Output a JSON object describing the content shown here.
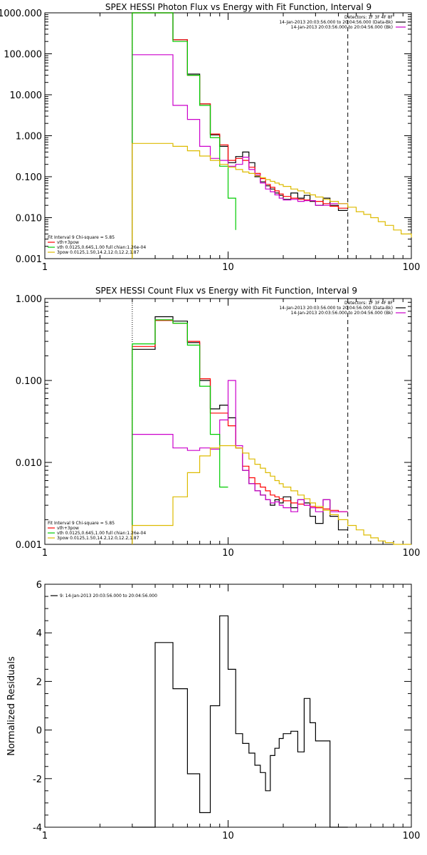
{
  "chart_data": [
    {
      "type": "line",
      "title": "SPEX HESSI Photon Flux vs Energy with Fit Function, Interval 9",
      "xlabel": "",
      "ylabel": "",
      "xscale": "log",
      "yscale": "log",
      "xlim": [
        1,
        100
      ],
      "ylim": [
        0.001,
        1000
      ],
      "x_ticks": [
        "1",
        "10",
        "100"
      ],
      "y_ticks": [
        "1000.000",
        "100.000",
        "10.000",
        "1.000",
        "0.100",
        "0.010",
        "0.001"
      ],
      "y_tick_values": [
        1000,
        100,
        10,
        1,
        0.1,
        0.01,
        0.001
      ],
      "vlines": [
        {
          "x": 3,
          "style": "dotted"
        },
        {
          "x": 45,
          "style": "dashed"
        }
      ],
      "legend_top": {
        "placement": "top-right",
        "lines": [
          "Detectors: 1F 3F 4F 8F",
          "14-Jan-2013 20:03:56.000 to 20:04:56.000 (Data-Bk)",
          "14-Jan-2013 20:03:56.000 to 20:04:56.000 (Bk)"
        ],
        "colors": [
          "",
          "#000000",
          "#cc00cc"
        ]
      },
      "legend_bottom": {
        "placement": "bottom-left",
        "lines": [
          "Fit Interval 9   Chi-square = 5.85",
          "vth+3pow",
          "vth 0.0125,0.645,1.00  full chian:1.26e-04",
          "3pow 0.0125,1.50,14.2,12.0,12.2,1.87"
        ],
        "colors": [
          "",
          "#ff0000",
          "#00cc00",
          "#ddbb00"
        ]
      },
      "series": [
        {
          "color": "#000000",
          "edges": [
            3,
            4,
            5,
            6,
            7,
            8,
            9,
            10,
            11,
            12,
            13,
            14,
            15,
            16,
            17,
            18,
            19,
            20,
            22,
            24,
            26,
            28,
            30,
            33,
            36,
            40,
            45
          ],
          "values": [
            1000,
            1000,
            220,
            32,
            6,
            1.05,
            0.55,
            0.22,
            0.31,
            0.4,
            0.22,
            0.1,
            0.075,
            0.06,
            0.05,
            0.04,
            0.035,
            0.028,
            0.04,
            0.03,
            0.035,
            0.025,
            0.02,
            0.03,
            0.02,
            0.015
          ]
        },
        {
          "color": "#ff0000",
          "edges": [
            3,
            4,
            5,
            6,
            7,
            8,
            9,
            10,
            11,
            12,
            13,
            14,
            15,
            16,
            17,
            18,
            19,
            20,
            22,
            24,
            26,
            28,
            30,
            33,
            36,
            40,
            45
          ],
          "values": [
            1000,
            1000,
            220,
            30,
            6,
            1.1,
            0.6,
            0.25,
            0.28,
            0.25,
            0.17,
            0.12,
            0.09,
            0.065,
            0.055,
            0.045,
            0.038,
            0.033,
            0.03,
            0.028,
            0.027,
            0.026,
            0.025,
            0.022,
            0.019,
            0.017
          ]
        },
        {
          "color": "#cc00cc",
          "edges": [
            3,
            4,
            5,
            6,
            7,
            8,
            9,
            10,
            11,
            12,
            13,
            14,
            15,
            16,
            17,
            18,
            19,
            20,
            22,
            24,
            26,
            28,
            30,
            33,
            36,
            40,
            45
          ],
          "values": [
            95,
            95,
            5.5,
            2.5,
            0.55,
            0.28,
            0.25,
            0.18,
            0.2,
            0.3,
            0.15,
            0.11,
            0.07,
            0.05,
            0.043,
            0.036,
            0.03,
            0.027,
            0.028,
            0.025,
            0.026,
            0.026,
            0.02,
            0.02,
            0.022,
            0.022
          ]
        },
        {
          "color": "#00cc00",
          "edges": [
            3,
            4,
            5,
            6,
            7,
            8,
            9,
            10,
            11
          ],
          "values": [
            1000,
            1000,
            200,
            30,
            5.5,
            0.9,
            0.18,
            0.03,
            0.005
          ]
        },
        {
          "color": "#ddbb00",
          "edges": [
            3,
            4,
            5,
            6,
            7,
            8,
            9,
            10,
            11,
            12,
            13,
            14,
            15,
            16,
            17,
            18,
            19,
            20,
            22,
            24,
            26,
            28,
            30,
            33,
            36,
            40,
            45,
            50,
            55,
            60,
            66,
            72,
            80,
            88,
            100
          ],
          "values": [
            0.65,
            0.65,
            0.55,
            0.43,
            0.32,
            0.25,
            0.2,
            0.17,
            0.15,
            0.13,
            0.12,
            0.105,
            0.095,
            0.085,
            0.077,
            0.07,
            0.064,
            0.058,
            0.05,
            0.045,
            0.04,
            0.036,
            0.032,
            0.028,
            0.025,
            0.022,
            0.018,
            0.014,
            0.012,
            0.01,
            0.008,
            0.0065,
            0.005,
            0.004,
            0.0033
          ]
        }
      ]
    },
    {
      "type": "line",
      "title": "SPEX HESSI Count Flux vs Energy with Fit Function, Interval 9",
      "xlabel": "",
      "ylabel": "",
      "xscale": "log",
      "yscale": "log",
      "xlim": [
        1,
        100
      ],
      "ylim": [
        0.001,
        1
      ],
      "x_ticks": [
        "1",
        "10",
        "100"
      ],
      "y_ticks": [
        "1.000",
        "0.100",
        "0.010",
        "0.001"
      ],
      "y_tick_values": [
        1,
        0.1,
        0.01,
        0.001
      ],
      "vlines": [
        {
          "x": 3,
          "style": "dotted"
        },
        {
          "x": 45,
          "style": "dashed"
        }
      ],
      "legend_top": {
        "placement": "top-right",
        "lines": [
          "Detectors: 1F 3F 4F 8F",
          "14-Jan-2013 20:03:56.000 to 20:04:56.000 (Data-Bk)",
          "14-Jan-2013 20:03:56.000 to 20:04:56.000 (Bk)"
        ],
        "colors": [
          "",
          "#000000",
          "#cc00cc"
        ]
      },
      "legend_bottom": {
        "placement": "bottom-left",
        "lines": [
          "Fit Interval 9   Chi-square = 5.85",
          "vth+3pow",
          "vth 0.0125,0.645,1.00  full chian:1.26e-04",
          "3pow 0.0125,1.50,14.2,12.0,12.2,1.87"
        ],
        "colors": [
          "",
          "#ff0000",
          "#00cc00",
          "#ddbb00"
        ]
      },
      "series": [
        {
          "color": "#000000",
          "edges": [
            3,
            4,
            5,
            6,
            7,
            8,
            9,
            10,
            11,
            12,
            13,
            14,
            15,
            16,
            17,
            18,
            19,
            20,
            22,
            24,
            26,
            28,
            30,
            33,
            36,
            40,
            45
          ],
          "values": [
            0.24,
            0.6,
            0.53,
            0.29,
            0.1,
            0.045,
            0.05,
            0.035,
            0.015,
            0.008,
            0.0055,
            0.0045,
            0.004,
            0.0035,
            0.003,
            0.0035,
            0.0032,
            0.0038,
            0.0028,
            0.0035,
            0.0032,
            0.0022,
            0.0018,
            0.0035,
            0.0022,
            0.0015
          ]
        },
        {
          "color": "#ff0000",
          "edges": [
            3,
            4,
            5,
            6,
            7,
            8,
            9,
            10,
            11,
            12,
            13,
            14,
            15,
            16,
            17,
            18,
            19,
            20,
            22,
            24,
            26,
            28,
            30,
            33,
            36,
            40,
            45
          ],
          "values": [
            0.26,
            0.54,
            0.5,
            0.3,
            0.105,
            0.04,
            0.04,
            0.028,
            0.015,
            0.009,
            0.0065,
            0.0055,
            0.005,
            0.0045,
            0.004,
            0.0038,
            0.0036,
            0.0034,
            0.0032,
            0.0031,
            0.003,
            0.0029,
            0.0028,
            0.0027,
            0.0026,
            0.0025
          ]
        },
        {
          "color": "#cc00cc",
          "edges": [
            3,
            4,
            5,
            6,
            7,
            8,
            9,
            10,
            11,
            12,
            13,
            14,
            15,
            16,
            17,
            18,
            19,
            20,
            22,
            24,
            26,
            28,
            30,
            33,
            36,
            40,
            45
          ],
          "values": [
            0.022,
            0.022,
            0.015,
            0.014,
            0.015,
            0.0145,
            0.033,
            0.1,
            0.016,
            0.008,
            0.0055,
            0.0045,
            0.004,
            0.0035,
            0.0032,
            0.0033,
            0.003,
            0.0028,
            0.0025,
            0.0035,
            0.003,
            0.0028,
            0.0025,
            0.0035,
            0.0025,
            0.0025
          ]
        },
        {
          "color": "#00cc00",
          "edges": [
            3,
            4,
            5,
            6,
            7,
            8,
            9,
            10
          ],
          "values": [
            0.28,
            0.55,
            0.5,
            0.27,
            0.085,
            0.022,
            0.005
          ]
        },
        {
          "color": "#ddbb00",
          "edges": [
            3,
            4,
            5,
            6,
            7,
            8,
            9,
            10,
            11,
            12,
            13,
            14,
            15,
            16,
            17,
            18,
            19,
            20,
            22,
            24,
            26,
            28,
            30,
            33,
            36,
            40,
            45,
            50,
            55,
            60,
            66,
            72,
            80,
            88,
            100
          ],
          "values": [
            0.0017,
            0.0017,
            0.0038,
            0.0075,
            0.012,
            0.015,
            0.016,
            0.016,
            0.015,
            0.013,
            0.011,
            0.0095,
            0.0085,
            0.0075,
            0.0068,
            0.006,
            0.0055,
            0.005,
            0.0045,
            0.004,
            0.0036,
            0.0032,
            0.0029,
            0.0026,
            0.0023,
            0.002,
            0.0017,
            0.0015,
            0.0013,
            0.0012,
            0.0011,
            0.00105,
            0.001,
            0.00095,
            0.0009
          ]
        }
      ]
    },
    {
      "type": "line",
      "title": "",
      "xlabel": "",
      "ylabel": "Normalized Residuals",
      "xscale": "log",
      "yscale": "linear",
      "xlim": [
        1,
        100
      ],
      "ylim": [
        -4,
        6
      ],
      "x_ticks": [
        "1",
        "10",
        "100"
      ],
      "y_ticks": [
        "6",
        "4",
        "2",
        "0",
        "-2",
        "-4"
      ],
      "y_tick_values": [
        6,
        4,
        2,
        0,
        -2,
        -4
      ],
      "legend": {
        "placement": "top-left",
        "lines": [
          "9: 14-Jan-2013 20:03:56.000 to 20:04:56.000"
        ],
        "colors": [
          "#000000"
        ]
      },
      "series": [
        {
          "color": "#000000",
          "edges": [
            3,
            4,
            5,
            6,
            7,
            8,
            9,
            10,
            11,
            12,
            13,
            14,
            15,
            16,
            17,
            18,
            19,
            20,
            22,
            24,
            26,
            28,
            30,
            33,
            36,
            40,
            45
          ],
          "values": [
            -4,
            3.6,
            1.7,
            -1.8,
            -3.4,
            1.0,
            4.7,
            2.5,
            -0.15,
            -0.55,
            -0.95,
            -1.45,
            -1.75,
            -2.5,
            -1.05,
            -0.75,
            -0.35,
            -0.15,
            -0.05,
            -0.9,
            1.3,
            0.3,
            -0.45,
            -0.45,
            -4,
            -4
          ]
        }
      ]
    }
  ]
}
